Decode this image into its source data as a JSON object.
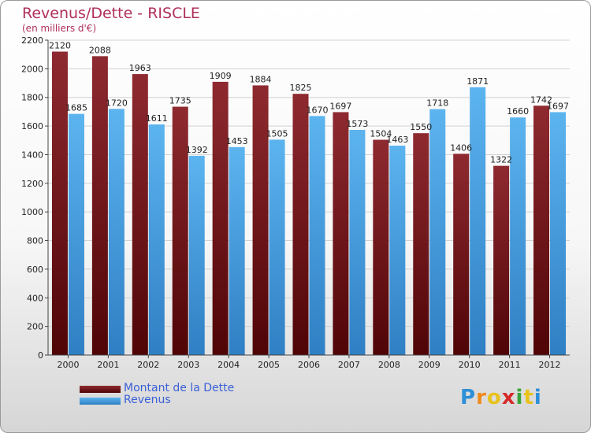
{
  "header": {
    "title": "Revenus/Dette - RISCLE",
    "subtitle": "(en milliers d'€)"
  },
  "chart_data": {
    "type": "bar",
    "categories": [
      "2000",
      "2001",
      "2002",
      "2003",
      "2004",
      "2005",
      "2006",
      "2007",
      "2008",
      "2009",
      "2010",
      "2011",
      "2012"
    ],
    "series": [
      {
        "name": "Montant de la Dette",
        "color": "#6e1418",
        "values": [
          2120,
          2088,
          1963,
          1735,
          1909,
          1884,
          1825,
          1697,
          1504,
          1550,
          1406,
          1322,
          1742
        ]
      },
      {
        "name": "Revenus",
        "color": "#4aa6e6",
        "values": [
          1685,
          1720,
          1611,
          1392,
          1453,
          1505,
          1670,
          1573,
          1463,
          1718,
          1871,
          1660,
          1697
        ]
      }
    ],
    "value_labels": [
      [
        "2120",
        "2088",
        "1963",
        "1735",
        "1909",
        "1884",
        "1825",
        "1697",
        "1504",
        "1550",
        "1406",
        "1322",
        "1742"
      ],
      [
        "1685",
        "1720",
        "1611",
        "1392",
        "1453",
        "1505",
        "1670",
        "1573",
        "1463",
        "1718",
        "1871",
        "1660",
        "1697"
      ]
    ],
    "ylim": [
      0,
      2200
    ],
    "yticks": [
      0,
      200,
      400,
      600,
      800,
      1000,
      1200,
      1400,
      1600,
      1800,
      2000,
      2200
    ],
    "grid": true,
    "legend": "bottom-left"
  },
  "legend": {
    "items": [
      {
        "label": "Montant de la Dette",
        "color": "#6e1418"
      },
      {
        "label": "Revenus",
        "color": "#4aa6e6"
      }
    ]
  },
  "logo": {
    "letters": [
      "P",
      "r",
      "o",
      "x",
      "i",
      "t",
      "i"
    ],
    "colors": [
      "#2d8fd8",
      "#f08a1c",
      "#e8c21a",
      "#d62a2a",
      "#3aa43a",
      "#e8c21a",
      "#2d8fd8"
    ]
  }
}
